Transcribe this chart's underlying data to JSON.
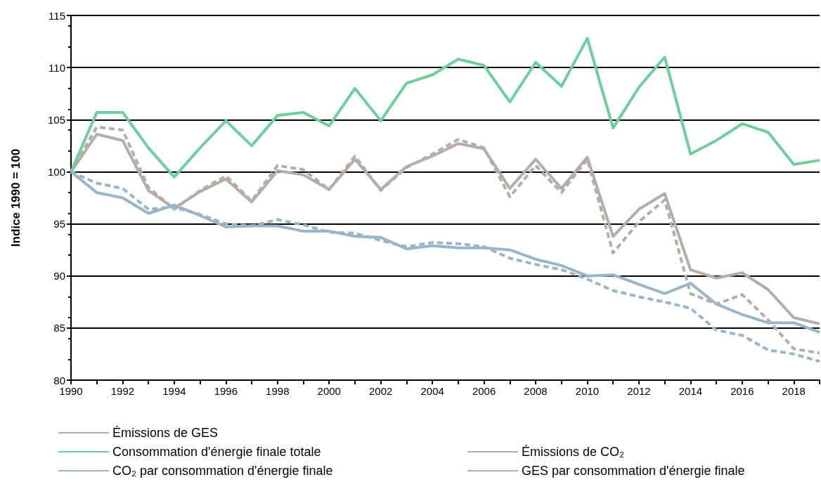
{
  "chart_data": {
    "type": "line",
    "ylabel": "Indice 1990 = 100",
    "x": [
      1990,
      1991,
      1992,
      1993,
      1994,
      1995,
      1996,
      1997,
      1998,
      1999,
      2000,
      2001,
      2002,
      2003,
      2004,
      2005,
      2006,
      2007,
      2008,
      2009,
      2010,
      2011,
      2012,
      2013,
      2014,
      2015,
      2016,
      2017,
      2018,
      2019
    ],
    "series": [
      {
        "name": "Émissions de GES",
        "color": "#b5ada7",
        "line_style": "solid",
        "values": [
          100,
          103.6,
          103.0,
          98.2,
          96.5,
          98.1,
          99.3,
          97.1,
          100.1,
          99.7,
          98.3,
          101.2,
          98.3,
          100.5,
          101.5,
          102.7,
          102.2,
          98.4,
          101.2,
          98.4,
          101.4,
          93.8,
          96.4,
          97.9,
          90.6,
          89.8,
          90.3,
          88.7,
          86.0,
          85.4
        ]
      },
      {
        "name": "Émissions de CO₂",
        "color": "#b5ada7",
        "line_style": "dashed",
        "values": [
          100,
          104.3,
          104.0,
          98.5,
          96.4,
          98.2,
          99.6,
          97.2,
          100.6,
          100.2,
          98.3,
          101.5,
          98.2,
          100.4,
          101.7,
          103.1,
          102.3,
          97.6,
          100.6,
          98.0,
          101.2,
          92.2,
          95.2,
          97.3,
          88.3,
          87.3,
          88.2,
          85.8,
          83.0,
          82.6
        ]
      },
      {
        "name": "Consommation d'énergie finale totale",
        "color": "#6fcf9c",
        "line_style": "solid",
        "values": [
          100,
          105.7,
          105.7,
          102.3,
          99.5,
          102.3,
          104.9,
          102.5,
          105.4,
          105.7,
          104.4,
          108.0,
          104.9,
          108.5,
          109.3,
          110.8,
          110.2,
          106.7,
          110.5,
          108.2,
          112.8,
          104.2,
          108.1,
          111.0,
          101.7,
          103.0,
          104.6,
          103.8,
          100.7,
          101.1
        ]
      },
      {
        "name": "GES par consommation d'énergie finale",
        "color": "#9bb5c8",
        "line_style": "solid",
        "values": [
          100,
          98.0,
          97.5,
          96.0,
          96.8,
          95.8,
          94.7,
          94.8,
          94.8,
          94.3,
          94.3,
          93.8,
          93.7,
          92.6,
          92.9,
          92.7,
          92.7,
          92.5,
          91.6,
          91.0,
          90.0,
          90.1,
          89.2,
          88.3,
          89.3,
          87.3,
          86.3,
          85.5,
          85.5,
          84.6
        ]
      },
      {
        "name": "CO₂ par consommation d'énergie finale",
        "color": "#9bb5c8",
        "line_style": "dashed",
        "values": [
          100,
          98.9,
          98.4,
          96.4,
          96.6,
          95.9,
          95.0,
          94.8,
          95.4,
          94.9,
          94.2,
          94.1,
          93.4,
          92.8,
          93.2,
          93.1,
          92.8,
          91.7,
          91.1,
          90.6,
          89.7,
          88.6,
          88.0,
          87.5,
          86.9,
          84.8,
          84.3,
          82.9,
          82.5,
          81.8
        ]
      }
    ],
    "xlim": [
      1990,
      2019
    ],
    "xticks": [
      1990,
      {
        "value": 1991,
        "label": null
      },
      1992,
      {
        "value": 1993,
        "label": null
      },
      1994,
      {
        "value": 1995,
        "label": null
      },
      1996,
      {
        "value": 1997,
        "label": null
      },
      1998,
      {
        "value": 1999,
        "label": null
      },
      2000,
      {
        "value": 2001,
        "label": null
      },
      2002,
      {
        "value": 2003,
        "label": null
      },
      2004,
      {
        "value": 2005,
        "label": null
      },
      2006,
      {
        "value": 2007,
        "label": null
      },
      2008,
      {
        "value": 2009,
        "label": null
      },
      2010,
      {
        "value": 2011,
        "label": null
      },
      2012,
      {
        "value": 2013,
        "label": null
      },
      2014,
      {
        "value": 2015,
        "label": null
      },
      2016,
      {
        "value": 2017,
        "label": null
      },
      2018,
      {
        "value": 2019,
        "label": null
      }
    ],
    "ylim": [
      80,
      115
    ],
    "yticks": [
      80,
      85,
      90,
      95,
      100,
      105,
      110,
      115
    ],
    "grid": "y",
    "legend": "bottom",
    "marker": "none"
  }
}
